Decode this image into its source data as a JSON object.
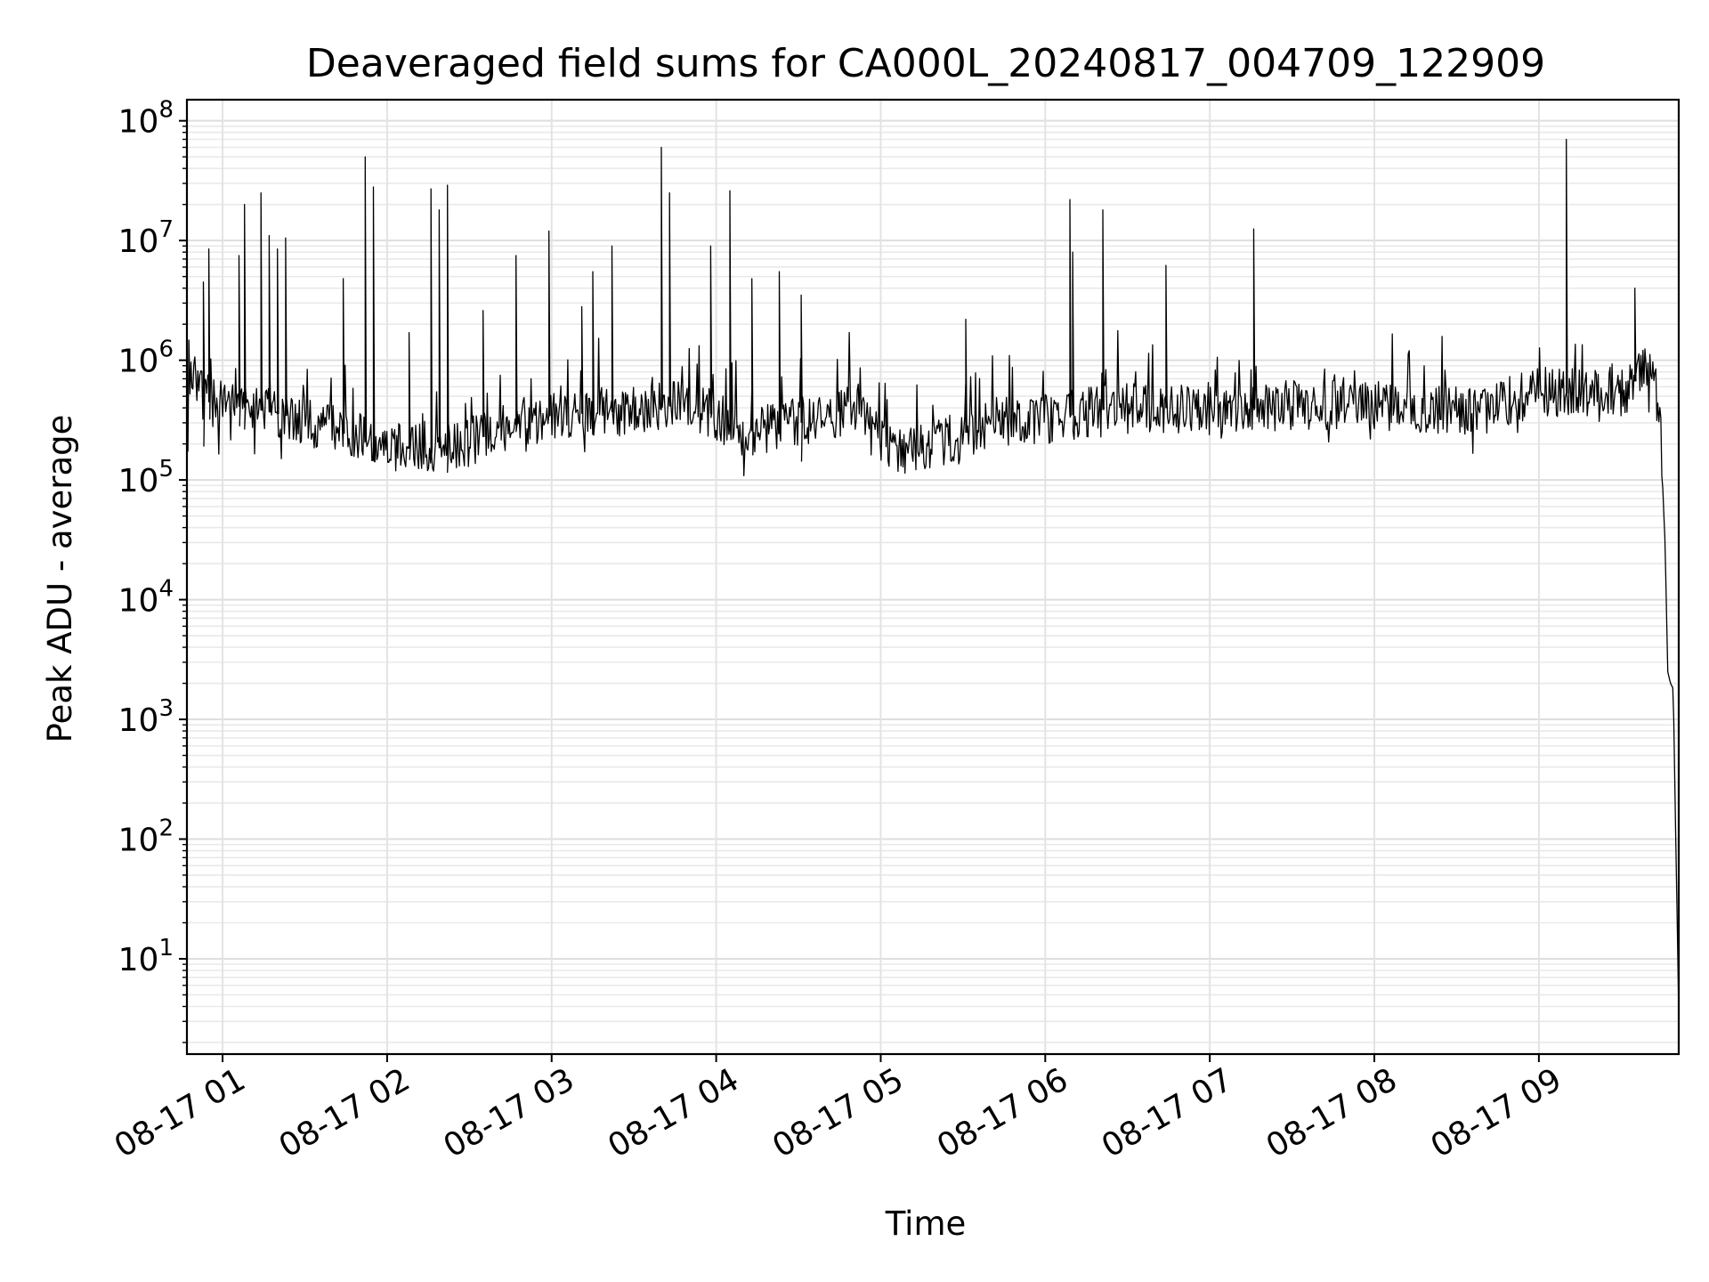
{
  "chart_data": {
    "type": "line",
    "title": "Deaveraged field sums for CA000L_20240817_004709_122909",
    "xlabel": "Time",
    "ylabel": "Peak ADU - average",
    "y_scale": "log",
    "ylim": [
      1.6,
      150000000
    ],
    "xlim": [
      "2024-08-17 00:47",
      "2024-08-17 09:51"
    ],
    "grid": "major and minor, light gray",
    "line_color": "#000000",
    "x_ticks": [
      {
        "label": "08-17 01",
        "time": "2024-08-17 01:00"
      },
      {
        "label": "08-17 02",
        "time": "2024-08-17 02:00"
      },
      {
        "label": "08-17 03",
        "time": "2024-08-17 03:00"
      },
      {
        "label": "08-17 04",
        "time": "2024-08-17 04:00"
      },
      {
        "label": "08-17 05",
        "time": "2024-08-17 05:00"
      },
      {
        "label": "08-17 06",
        "time": "2024-08-17 06:00"
      },
      {
        "label": "08-17 07",
        "time": "2024-08-17 07:00"
      },
      {
        "label": "08-17 08",
        "time": "2024-08-17 08:00"
      },
      {
        "label": "08-17 09",
        "time": "2024-08-17 09:00"
      }
    ],
    "y_ticks": [
      {
        "base": "10",
        "exp": "1",
        "value": 10
      },
      {
        "base": "10",
        "exp": "2",
        "value": 100
      },
      {
        "base": "10",
        "exp": "3",
        "value": 1000
      },
      {
        "base": "10",
        "exp": "4",
        "value": 10000
      },
      {
        "base": "10",
        "exp": "5",
        "value": 100000
      },
      {
        "base": "10",
        "exp": "6",
        "value": 1000000
      },
      {
        "base": "10",
        "exp": "7",
        "value": 10000000
      },
      {
        "base": "10",
        "exp": "8",
        "value": 100000000
      }
    ],
    "baseline": [
      [
        "2024-08-17 00:47",
        170000
      ],
      [
        "2024-08-17 00:48",
        600000
      ],
      [
        "2024-08-17 00:50",
        700000
      ],
      [
        "2024-08-17 00:55",
        450000
      ],
      [
        "2024-08-17 01:10",
        400000
      ],
      [
        "2024-08-17 01:30",
        320000
      ],
      [
        "2024-08-17 01:50",
        220000
      ],
      [
        "2024-08-17 02:10",
        180000
      ],
      [
        "2024-08-17 02:25",
        190000
      ],
      [
        "2024-08-17 02:45",
        280000
      ],
      [
        "2024-08-17 03:00",
        350000
      ],
      [
        "2024-08-17 03:30",
        380000
      ],
      [
        "2024-08-17 03:45",
        420000
      ],
      [
        "2024-08-17 04:00",
        350000
      ],
      [
        "2024-08-17 04:10",
        250000
      ],
      [
        "2024-08-17 04:30",
        300000
      ],
      [
        "2024-08-17 04:50",
        380000
      ],
      [
        "2024-08-17 05:05",
        160000
      ],
      [
        "2024-08-17 05:20",
        200000
      ],
      [
        "2024-08-17 05:40",
        300000
      ],
      [
        "2024-08-17 06:00",
        320000
      ],
      [
        "2024-08-17 06:30",
        420000
      ],
      [
        "2024-08-17 07:00",
        380000
      ],
      [
        "2024-08-17 07:30",
        420000
      ],
      [
        "2024-08-17 08:00",
        420000
      ],
      [
        "2024-08-17 08:40",
        380000
      ],
      [
        "2024-08-17 09:00",
        550000
      ],
      [
        "2024-08-17 09:30",
        500000
      ],
      [
        "2024-08-17 09:40",
        900000
      ],
      [
        "2024-08-17 09:44",
        400000
      ],
      [
        "2024-08-17 09:46",
        30000
      ],
      [
        "2024-08-17 09:47",
        2500
      ],
      [
        "2024-08-17 09:48",
        2000
      ],
      [
        "2024-08-17 09:49",
        1800
      ],
      [
        "2024-08-17 09:51",
        3.5
      ]
    ],
    "spikes": [
      [
        "2024-08-17 00:53",
        4500000
      ],
      [
        "2024-08-17 00:55",
        8500000
      ],
      [
        "2024-08-17 01:06",
        7500000
      ],
      [
        "2024-08-17 01:08",
        20000000
      ],
      [
        "2024-08-17 01:14",
        25000000
      ],
      [
        "2024-08-17 01:17",
        11000000
      ],
      [
        "2024-08-17 01:20",
        8500000
      ],
      [
        "2024-08-17 01:23",
        10500000
      ],
      [
        "2024-08-17 01:44",
        4800000
      ],
      [
        "2024-08-17 01:52",
        50000000
      ],
      [
        "2024-08-17 01:55",
        28000000
      ],
      [
        "2024-08-17 02:08",
        1700000
      ],
      [
        "2024-08-17 02:16",
        27000000
      ],
      [
        "2024-08-17 02:19",
        18000000
      ],
      [
        "2024-08-17 02:22",
        29000000
      ],
      [
        "2024-08-17 02:35",
        2600000
      ],
      [
        "2024-08-17 02:47",
        7500000
      ],
      [
        "2024-08-17 02:59",
        12000000
      ],
      [
        "2024-08-17 03:11",
        2800000
      ],
      [
        "2024-08-17 03:15",
        5500000
      ],
      [
        "2024-08-17 03:22",
        9000000
      ],
      [
        "2024-08-17 03:40",
        60000000
      ],
      [
        "2024-08-17 03:43",
        25000000
      ],
      [
        "2024-08-17 03:58",
        9000000
      ],
      [
        "2024-08-17 04:05",
        26000000
      ],
      [
        "2024-08-17 04:13",
        4800000
      ],
      [
        "2024-08-17 04:23",
        5500000
      ],
      [
        "2024-08-17 04:31",
        3500000
      ],
      [
        "2024-08-17 05:31",
        2200000
      ],
      [
        "2024-08-17 06:09",
        22000000
      ],
      [
        "2024-08-17 06:10",
        8000000
      ],
      [
        "2024-08-17 06:21",
        18000000
      ],
      [
        "2024-08-17 06:44",
        6200000
      ],
      [
        "2024-08-17 07:16",
        12500000
      ],
      [
        "2024-08-17 09:10",
        70000000
      ],
      [
        "2024-08-17 09:35",
        4000000
      ]
    ]
  }
}
